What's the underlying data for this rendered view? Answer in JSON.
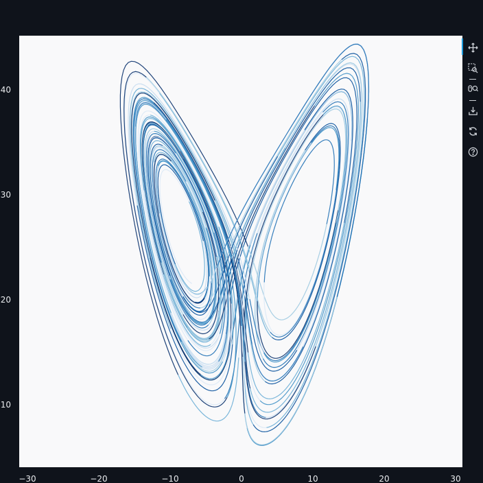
{
  "chart_data": {
    "type": "line",
    "title": "",
    "xlabel": "",
    "ylabel": "",
    "xlim": [
      -31,
      31
    ],
    "ylim": [
      3,
      45
    ],
    "x_ticks": [
      -30,
      -20,
      -10,
      0,
      10,
      20,
      30
    ],
    "y_ticks": [
      10,
      20,
      30,
      40
    ],
    "x_tick_labels": [
      "−30",
      "−20",
      "−10",
      "0",
      "10",
      "20",
      "30"
    ],
    "y_tick_labels": [
      "10",
      "20",
      "30",
      "40"
    ],
    "grid": false,
    "legend": "none",
    "series_kind": "Lorenz attractor trajectory (x vs z), many segments in shades of blue",
    "lorenz": {
      "sigma": 10,
      "rho": 28,
      "beta": 2.6667,
      "x0": 0.1,
      "y0": 0.0,
      "z0": 20.0,
      "dt": 0.006,
      "steps": 9000
    },
    "colors": [
      "#dbe9f6",
      "#c6dbef",
      "#9ecae1",
      "#6baed6",
      "#4292c6",
      "#2171b5",
      "#08519c",
      "#08306b"
    ]
  },
  "toolbar": {
    "items": [
      {
        "name": "pan-icon"
      },
      {
        "name": "box-zoom-icon"
      },
      {
        "name": "wheel-zoom-icon"
      },
      {
        "name": "save-icon"
      },
      {
        "name": "reset-icon"
      },
      {
        "name": "help-icon"
      }
    ]
  }
}
